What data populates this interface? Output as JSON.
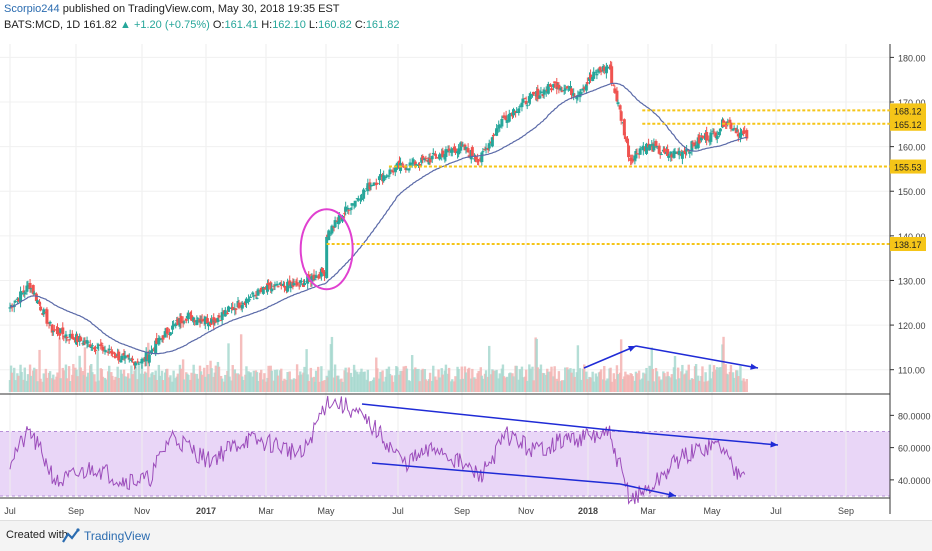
{
  "header": {
    "author": "Scorpio244",
    "published": "published on TradingView.com, May 30, 2018 19:35 EST",
    "symbol": "BATS:MCD, 1D",
    "last": "161.82",
    "change": "+1.20 (+0.75%)",
    "o_label": "O:",
    "o_value": "161.41",
    "h_label": "H:",
    "h_value": "162.10",
    "l_label": "L:",
    "l_value": "160.82",
    "c_label": "C:",
    "c_value": "161.82"
  },
  "footer": {
    "created": "Created with",
    "brand": "TradingView"
  },
  "colors": {
    "up": "#26a69a",
    "down": "#ef5350",
    "ma": "#5b6aa8",
    "level": "#f5c518",
    "rsi": "#9c4dbb",
    "band": "#e9d6f7",
    "annotation": "#1f2bd6",
    "circle": "#e040d0"
  },
  "chart_data": [
    {
      "type": "candlestick",
      "title": "",
      "x_ticks": [
        "Jul",
        "Sep",
        "Nov",
        "2017",
        "Mar",
        "May",
        "Jul",
        "Sep",
        "Nov",
        "2018",
        "Mar",
        "May",
        "Jul",
        "Sep"
      ],
      "ylim": [
        105,
        183
      ],
      "y_ticks": [
        110,
        120,
        130,
        140,
        150,
        160,
        170,
        180
      ],
      "price_path": [
        {
          "date": "2016-07-01",
          "close": 124
        },
        {
          "date": "2016-07-20",
          "close": 129
        },
        {
          "date": "2016-08-10",
          "close": 119
        },
        {
          "date": "2016-09-01",
          "close": 117
        },
        {
          "date": "2016-09-25",
          "close": 115
        },
        {
          "date": "2016-10-20",
          "close": 112
        },
        {
          "date": "2016-11-05",
          "close": 112
        },
        {
          "date": "2016-11-25",
          "close": 118
        },
        {
          "date": "2016-12-15",
          "close": 122
        },
        {
          "date": "2017-01-10",
          "close": 121
        },
        {
          "date": "2017-02-05",
          "close": 125
        },
        {
          "date": "2017-03-01",
          "close": 128
        },
        {
          "date": "2017-04-01",
          "close": 129
        },
        {
          "date": "2017-04-25",
          "close": 132
        },
        {
          "date": "2017-04-27",
          "close": 140
        },
        {
          "date": "2017-05-20",
          "close": 147
        },
        {
          "date": "2017-06-10",
          "close": 152
        },
        {
          "date": "2017-07-01",
          "close": 155
        },
        {
          "date": "2017-08-01",
          "close": 157
        },
        {
          "date": "2017-09-01",
          "close": 160
        },
        {
          "date": "2017-09-20",
          "close": 157
        },
        {
          "date": "2017-10-10",
          "close": 166
        },
        {
          "date": "2017-11-01",
          "close": 170
        },
        {
          "date": "2017-12-01",
          "close": 174
        },
        {
          "date": "2017-12-20",
          "close": 172
        },
        {
          "date": "2018-01-10",
          "close": 177
        },
        {
          "date": "2018-01-20",
          "close": 178
        },
        {
          "date": "2018-02-02",
          "close": 165
        },
        {
          "date": "2018-02-09",
          "close": 157
        },
        {
          "date": "2018-02-20",
          "close": 160
        },
        {
          "date": "2018-03-01",
          "close": 160
        },
        {
          "date": "2018-03-15",
          "close": 158
        },
        {
          "date": "2018-04-01",
          "close": 159
        },
        {
          "date": "2018-04-20",
          "close": 162
        },
        {
          "date": "2018-05-01",
          "close": 163
        },
        {
          "date": "2018-05-10",
          "close": 166
        },
        {
          "date": "2018-05-30",
          "close": 161.82
        }
      ],
      "horizontal_levels": [
        168.12,
        165.12,
        155.53,
        138.17
      ],
      "volume": "bars along bottom of price pane"
    },
    {
      "type": "line",
      "title": "",
      "ylim": [
        30,
        92
      ],
      "y_ticks": [
        40.0,
        60.0,
        80.0
      ],
      "band": [
        30,
        70
      ],
      "rsi_path": [
        {
          "date": "2016-07-01",
          "value": 52
        },
        {
          "date": "2016-07-20",
          "value": 70
        },
        {
          "date": "2016-08-15",
          "value": 38
        },
        {
          "date": "2016-09-20",
          "value": 48
        },
        {
          "date": "2016-10-15",
          "value": 40
        },
        {
          "date": "2016-11-10",
          "value": 40
        },
        {
          "date": "2016-12-01",
          "value": 68
        },
        {
          "date": "2017-01-05",
          "value": 52
        },
        {
          "date": "2017-02-10",
          "value": 65
        },
        {
          "date": "2017-03-10",
          "value": 62
        },
        {
          "date": "2017-04-05",
          "value": 55
        },
        {
          "date": "2017-04-28",
          "value": 90
        },
        {
          "date": "2017-05-20",
          "value": 84
        },
        {
          "date": "2017-06-15",
          "value": 70
        },
        {
          "date": "2017-07-10",
          "value": 50
        },
        {
          "date": "2017-08-10",
          "value": 60
        },
        {
          "date": "2017-09-20",
          "value": 42
        },
        {
          "date": "2017-10-15",
          "value": 68
        },
        {
          "date": "2017-11-10",
          "value": 58
        },
        {
          "date": "2017-12-10",
          "value": 65
        },
        {
          "date": "2018-01-20",
          "value": 68
        },
        {
          "date": "2018-02-09",
          "value": 28
        },
        {
          "date": "2018-03-01",
          "value": 35
        },
        {
          "date": "2018-03-25",
          "value": 52
        },
        {
          "date": "2018-04-20",
          "value": 60
        },
        {
          "date": "2018-05-05",
          "value": 62
        },
        {
          "date": "2018-05-20",
          "value": 45
        },
        {
          "date": "2018-05-30",
          "value": 50
        }
      ]
    }
  ]
}
